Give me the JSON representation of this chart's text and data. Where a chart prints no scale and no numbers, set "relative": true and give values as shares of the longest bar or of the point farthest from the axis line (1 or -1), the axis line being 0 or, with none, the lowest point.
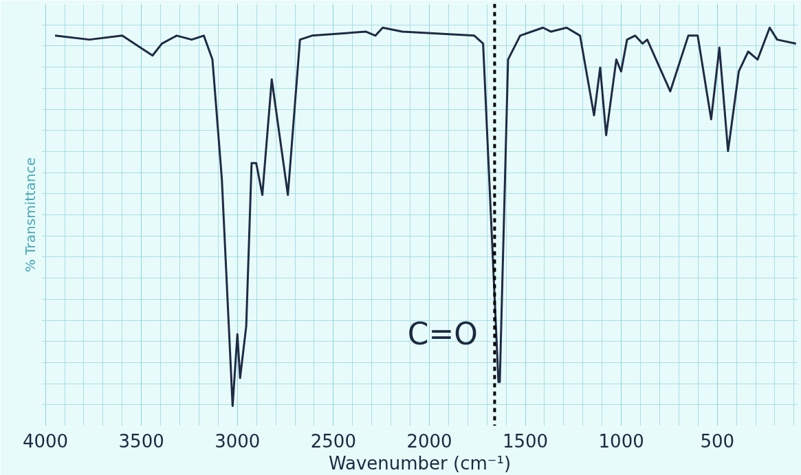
{
  "chart_data": {
    "type": "line",
    "relative": true,
    "xlabel": "Wavenumber (cm⁻¹)",
    "ylabel": "% Transmittance",
    "xlim": [
      4020,
      80
    ],
    "xticks": [
      4000,
      3500,
      3000,
      2500,
      2000,
      1500,
      1000,
      500
    ],
    "grid": true,
    "marker": "none",
    "line_style": "solid",
    "ref_lines": [
      {
        "axis": "x",
        "value": 1660,
        "label": null,
        "color": "#000000",
        "line_style": "dashed"
      }
    ],
    "annotations": [
      {
        "text": "C=O",
        "x": 1640,
        "y": 0.11
      }
    ],
    "series": [
      {
        "color": "#1f2a44",
        "x": [
          3950,
          3771,
          3600,
          3505,
          3442,
          3393,
          3316,
          3238,
          3175,
          3130,
          3081,
          3025,
          3000,
          2986,
          2954,
          2926,
          2902,
          2870,
          2821,
          2737,
          2674,
          2611,
          2330,
          2281,
          2243,
          2141,
          1766,
          1720,
          1640,
          1633,
          1590,
          1527,
          1408,
          1366,
          1285,
          1215,
          1142,
          1110,
          1079,
          1026,
          1001,
          970,
          928,
          889,
          865,
          745,
          651,
          602,
          532,
          489,
          444,
          388,
          339,
          290,
          227,
          188,
          90
        ],
        "values": [
          0.98,
          0.97,
          0.98,
          0.95,
          0.93,
          0.96,
          0.98,
          0.97,
          0.98,
          0.92,
          0.62,
          0.05,
          0.23,
          0.12,
          0.25,
          0.66,
          0.66,
          0.58,
          0.87,
          0.58,
          0.97,
          0.98,
          0.99,
          0.98,
          1.0,
          0.99,
          0.98,
          0.96,
          0.11,
          0.11,
          0.92,
          0.98,
          1.0,
          0.99,
          1.0,
          0.98,
          0.78,
          0.9,
          0.73,
          0.92,
          0.89,
          0.97,
          0.98,
          0.96,
          0.97,
          0.84,
          0.98,
          0.98,
          0.77,
          0.95,
          0.69,
          0.89,
          0.94,
          0.92,
          1.0,
          0.97,
          0.96
        ]
      }
    ]
  }
}
